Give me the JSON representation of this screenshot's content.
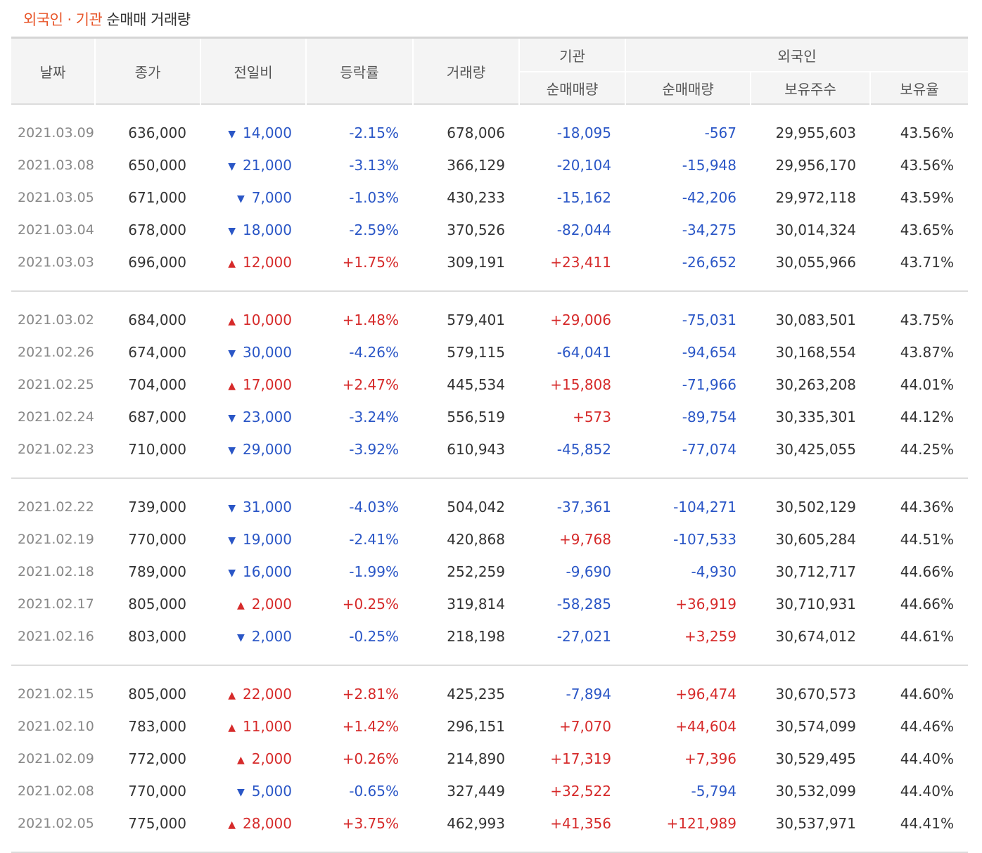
{
  "title": {
    "part1": "외국인",
    "sep": "·",
    "part2": "기관",
    "rest": "순매매 거래량"
  },
  "header": {
    "date": "날짜",
    "close": "종가",
    "change": "전일비",
    "rate": "등락률",
    "volume": "거래량",
    "inst_group": "기관",
    "foreign_group": "외국인",
    "inst_net": "순매매량",
    "foreign_net": "순매매량",
    "foreign_shares": "보유주수",
    "foreign_ratio": "보유율"
  },
  "colors": {
    "up": "#d62a2a",
    "down": "#2a56c6",
    "accent": "#e8562a"
  },
  "groups": [
    [
      {
        "date": "2021.03.09",
        "close": "636,000",
        "dir": "down",
        "change": "14,000",
        "rate": "-2.15%",
        "volume": "678,006",
        "inst": "-18,095",
        "foreign": "-567",
        "shares": "29,955,603",
        "ratio": "43.56%"
      },
      {
        "date": "2021.03.08",
        "close": "650,000",
        "dir": "down",
        "change": "21,000",
        "rate": "-3.13%",
        "volume": "366,129",
        "inst": "-20,104",
        "foreign": "-15,948",
        "shares": "29,956,170",
        "ratio": "43.56%"
      },
      {
        "date": "2021.03.05",
        "close": "671,000",
        "dir": "down",
        "change": "7,000",
        "rate": "-1.03%",
        "volume": "430,233",
        "inst": "-15,162",
        "foreign": "-42,206",
        "shares": "29,972,118",
        "ratio": "43.59%"
      },
      {
        "date": "2021.03.04",
        "close": "678,000",
        "dir": "down",
        "change": "18,000",
        "rate": "-2.59%",
        "volume": "370,526",
        "inst": "-82,044",
        "foreign": "-34,275",
        "shares": "30,014,324",
        "ratio": "43.65%"
      },
      {
        "date": "2021.03.03",
        "close": "696,000",
        "dir": "up",
        "change": "12,000",
        "rate": "+1.75%",
        "volume": "309,191",
        "inst": "+23,411",
        "foreign": "-26,652",
        "shares": "30,055,966",
        "ratio": "43.71%"
      }
    ],
    [
      {
        "date": "2021.03.02",
        "close": "684,000",
        "dir": "up",
        "change": "10,000",
        "rate": "+1.48%",
        "volume": "579,401",
        "inst": "+29,006",
        "foreign": "-75,031",
        "shares": "30,083,501",
        "ratio": "43.75%"
      },
      {
        "date": "2021.02.26",
        "close": "674,000",
        "dir": "down",
        "change": "30,000",
        "rate": "-4.26%",
        "volume": "579,115",
        "inst": "-64,041",
        "foreign": "-94,654",
        "shares": "30,168,554",
        "ratio": "43.87%"
      },
      {
        "date": "2021.02.25",
        "close": "704,000",
        "dir": "up",
        "change": "17,000",
        "rate": "+2.47%",
        "volume": "445,534",
        "inst": "+15,808",
        "foreign": "-71,966",
        "shares": "30,263,208",
        "ratio": "44.01%"
      },
      {
        "date": "2021.02.24",
        "close": "687,000",
        "dir": "down",
        "change": "23,000",
        "rate": "-3.24%",
        "volume": "556,519",
        "inst": "+573",
        "foreign": "-89,754",
        "shares": "30,335,301",
        "ratio": "44.12%"
      },
      {
        "date": "2021.02.23",
        "close": "710,000",
        "dir": "down",
        "change": "29,000",
        "rate": "-3.92%",
        "volume": "610,943",
        "inst": "-45,852",
        "foreign": "-77,074",
        "shares": "30,425,055",
        "ratio": "44.25%"
      }
    ],
    [
      {
        "date": "2021.02.22",
        "close": "739,000",
        "dir": "down",
        "change": "31,000",
        "rate": "-4.03%",
        "volume": "504,042",
        "inst": "-37,361",
        "foreign": "-104,271",
        "shares": "30,502,129",
        "ratio": "44.36%"
      },
      {
        "date": "2021.02.19",
        "close": "770,000",
        "dir": "down",
        "change": "19,000",
        "rate": "-2.41%",
        "volume": "420,868",
        "inst": "+9,768",
        "foreign": "-107,533",
        "shares": "30,605,284",
        "ratio": "44.51%"
      },
      {
        "date": "2021.02.18",
        "close": "789,000",
        "dir": "down",
        "change": "16,000",
        "rate": "-1.99%",
        "volume": "252,259",
        "inst": "-9,690",
        "foreign": "-4,930",
        "shares": "30,712,717",
        "ratio": "44.66%"
      },
      {
        "date": "2021.02.17",
        "close": "805,000",
        "dir": "up",
        "change": "2,000",
        "rate": "+0.25%",
        "volume": "319,814",
        "inst": "-58,285",
        "foreign": "+36,919",
        "shares": "30,710,931",
        "ratio": "44.66%"
      },
      {
        "date": "2021.02.16",
        "close": "803,000",
        "dir": "down",
        "change": "2,000",
        "rate": "-0.25%",
        "volume": "218,198",
        "inst": "-27,021",
        "foreign": "+3,259",
        "shares": "30,674,012",
        "ratio": "44.61%"
      }
    ],
    [
      {
        "date": "2021.02.15",
        "close": "805,000",
        "dir": "up",
        "change": "22,000",
        "rate": "+2.81%",
        "volume": "425,235",
        "inst": "-7,894",
        "foreign": "+96,474",
        "shares": "30,670,573",
        "ratio": "44.60%"
      },
      {
        "date": "2021.02.10",
        "close": "783,000",
        "dir": "up",
        "change": "11,000",
        "rate": "+1.42%",
        "volume": "296,151",
        "inst": "+7,070",
        "foreign": "+44,604",
        "shares": "30,574,099",
        "ratio": "44.46%"
      },
      {
        "date": "2021.02.09",
        "close": "772,000",
        "dir": "up",
        "change": "2,000",
        "rate": "+0.26%",
        "volume": "214,890",
        "inst": "+17,319",
        "foreign": "+7,396",
        "shares": "30,529,495",
        "ratio": "44.40%"
      },
      {
        "date": "2021.02.08",
        "close": "770,000",
        "dir": "down",
        "change": "5,000",
        "rate": "-0.65%",
        "volume": "327,449",
        "inst": "+32,522",
        "foreign": "-5,794",
        "shares": "30,532,099",
        "ratio": "44.40%"
      },
      {
        "date": "2021.02.05",
        "close": "775,000",
        "dir": "up",
        "change": "28,000",
        "rate": "+3.75%",
        "volume": "462,993",
        "inst": "+41,356",
        "foreign": "+121,989",
        "shares": "30,537,971",
        "ratio": "44.41%"
      }
    ]
  ]
}
